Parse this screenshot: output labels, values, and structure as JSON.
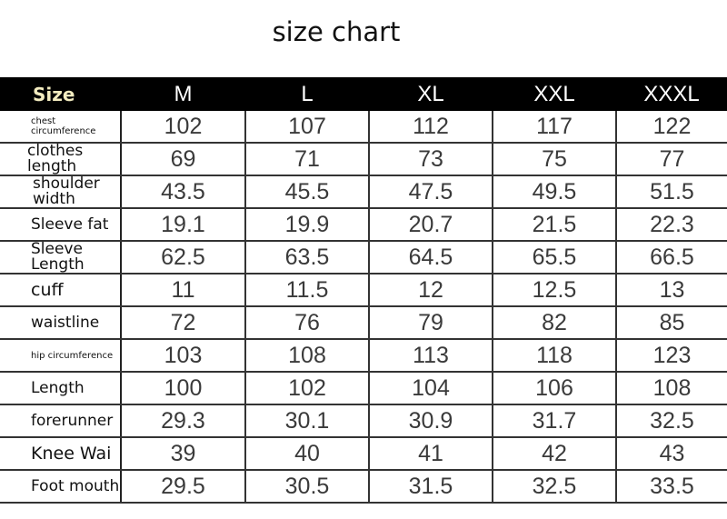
{
  "title": "size chart",
  "table": {
    "header": [
      "Size",
      "M",
      "L",
      "XL",
      "XXL",
      "XXXL"
    ],
    "rows": [
      {
        "label": "chest circumference",
        "values": [
          "102",
          "107",
          "112",
          "117",
          "122"
        ]
      },
      {
        "label": "clothes length",
        "values": [
          "69",
          "71",
          "73",
          "75",
          "77"
        ]
      },
      {
        "label": "shoulder width",
        "values": [
          "43.5",
          "45.5",
          "47.5",
          "49.5",
          "51.5"
        ]
      },
      {
        "label": "Sleeve fat",
        "values": [
          "19.1",
          "19.9",
          "20.7",
          "21.5",
          "22.3"
        ]
      },
      {
        "label": "Sleeve Length",
        "values": [
          "62.5",
          "63.5",
          "64.5",
          "65.5",
          "66.5"
        ]
      },
      {
        "label": "cuff",
        "values": [
          "11",
          "11.5",
          "12",
          "12.5",
          "13"
        ]
      },
      {
        "label": "waistline",
        "values": [
          "72",
          "76",
          "79",
          "82",
          "85"
        ]
      },
      {
        "label": "hip circumference",
        "values": [
          "103",
          "108",
          "113",
          "118",
          "123"
        ]
      },
      {
        "label": "Length",
        "values": [
          "100",
          "102",
          "104",
          "106",
          "108"
        ]
      },
      {
        "label": "forerunner",
        "values": [
          "29.3",
          "30.1",
          "30.9",
          "31.7",
          "32.5"
        ]
      },
      {
        "label": "Knee Wai",
        "values": [
          "39",
          "40",
          "41",
          "42",
          "43"
        ]
      },
      {
        "label": "Foot mouth",
        "values": [
          "29.5",
          "30.5",
          "31.5",
          "32.5",
          "33.5"
        ]
      }
    ]
  }
}
